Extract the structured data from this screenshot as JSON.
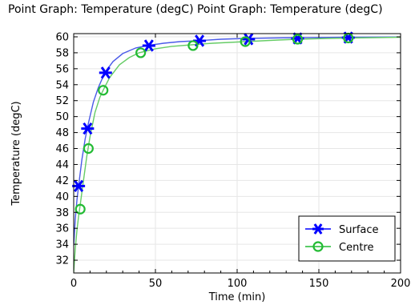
{
  "chart_data": {
    "type": "line",
    "title": "Point Graph: Temperature (degC)  Point Graph: Temperature (degC)",
    "xlabel": "Time (min)",
    "ylabel": "Temperature (degC)",
    "xlim": [
      0,
      200
    ],
    "ylim": [
      30.4,
      60.4
    ],
    "xticks": [
      0,
      50,
      100,
      150,
      200
    ],
    "yticks": [
      32,
      34,
      36,
      38,
      40,
      42,
      44,
      46,
      48,
      50,
      52,
      54,
      56,
      58,
      60
    ],
    "grid": true,
    "legend_position": "bottom-right",
    "series": [
      {
        "name": "Surface",
        "color": "#0000ff",
        "line_color": "#4a5ae8",
        "marker": "asterisk",
        "curve": [
          [
            0,
            33.8
          ],
          [
            1,
            37.2
          ],
          [
            2,
            39.6
          ],
          [
            3,
            41.3
          ],
          [
            5,
            44.6
          ],
          [
            7,
            47.2
          ],
          [
            9,
            49.2
          ],
          [
            12,
            51.8
          ],
          [
            15,
            53.6
          ],
          [
            19,
            55.5
          ],
          [
            24,
            56.9
          ],
          [
            30,
            57.9
          ],
          [
            38,
            58.6
          ],
          [
            45,
            58.9
          ],
          [
            55,
            59.2
          ],
          [
            65,
            59.4
          ],
          [
            75,
            59.5
          ],
          [
            90,
            59.7
          ],
          [
            105,
            59.8
          ],
          [
            120,
            59.85
          ],
          [
            137,
            59.9
          ],
          [
            150,
            59.92
          ],
          [
            168,
            59.95
          ],
          [
            185,
            59.97
          ],
          [
            200,
            59.98
          ]
        ],
        "markers": [
          [
            3,
            41.3
          ],
          [
            8.5,
            48.5
          ],
          [
            19.5,
            55.5
          ],
          [
            46,
            58.9
          ],
          [
            77,
            59.5
          ],
          [
            107,
            59.7
          ],
          [
            137,
            59.8
          ],
          [
            168,
            59.9
          ]
        ]
      },
      {
        "name": "Centre",
        "color": "#22bb33",
        "line_color": "#66cc66",
        "marker": "circle",
        "curve": [
          [
            0,
            30.5
          ],
          [
            1,
            33.5
          ],
          [
            2,
            35.8
          ],
          [
            3,
            37.5
          ],
          [
            4,
            39.0
          ],
          [
            6,
            42.0
          ],
          [
            8,
            45.0
          ],
          [
            10,
            47.5
          ],
          [
            13,
            50.5
          ],
          [
            16,
            52.4
          ],
          [
            18,
            53.3
          ],
          [
            22,
            54.9
          ],
          [
            28,
            56.5
          ],
          [
            34,
            57.4
          ],
          [
            40,
            58.0
          ],
          [
            50,
            58.5
          ],
          [
            60,
            58.8
          ],
          [
            72,
            59.0
          ],
          [
            85,
            59.2
          ],
          [
            105,
            59.4
          ],
          [
            125,
            59.6
          ],
          [
            137,
            59.7
          ],
          [
            155,
            59.8
          ],
          [
            168,
            59.85
          ],
          [
            185,
            59.9
          ],
          [
            200,
            59.95
          ]
        ],
        "markers": [
          [
            4,
            38.4
          ],
          [
            9,
            46.0
          ],
          [
            18,
            53.3
          ],
          [
            41,
            58.0
          ],
          [
            73,
            58.9
          ],
          [
            105,
            59.4
          ],
          [
            137,
            59.7
          ],
          [
            168,
            59.85
          ]
        ]
      }
    ]
  }
}
